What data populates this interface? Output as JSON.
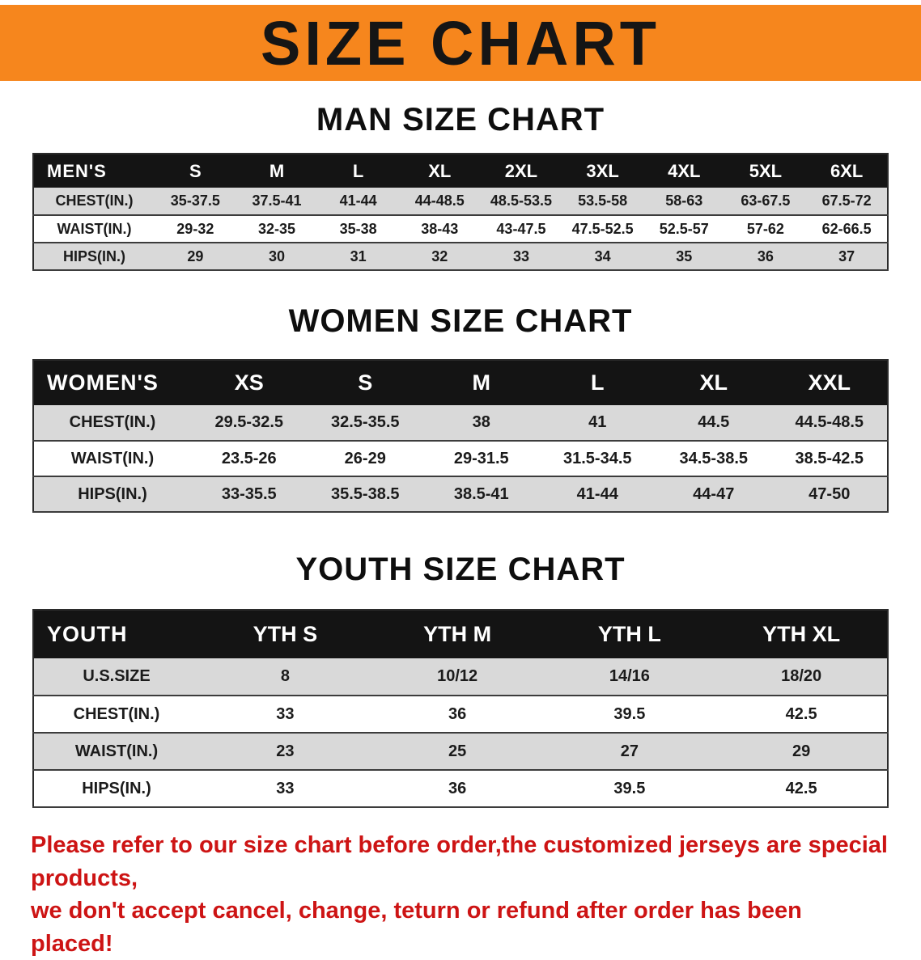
{
  "banner": {
    "title": "SIZE CHART",
    "bg_color": "#f6861d",
    "text_color": "#151515"
  },
  "men": {
    "heading": "MAN SIZE CHART",
    "table": {
      "header": [
        "MEN'S",
        "S",
        "M",
        "L",
        "XL",
        "2XL",
        "3XL",
        "4XL",
        "5XL",
        "6XL"
      ],
      "rows": [
        {
          "label": "CHEST(IN.)",
          "values": [
            "35-37.5",
            "37.5-41",
            "41-44",
            "44-48.5",
            "48.5-53.5",
            "53.5-58",
            "58-63",
            "63-67.5",
            "67.5-72"
          ]
        },
        {
          "label": "WAIST(IN.)",
          "values": [
            "29-32",
            "32-35",
            "35-38",
            "38-43",
            "43-47.5",
            "47.5-52.5",
            "52.5-57",
            "57-62",
            "62-66.5"
          ]
        },
        {
          "label": "HIPS(IN.)",
          "values": [
            "29",
            "30",
            "31",
            "32",
            "33",
            "34",
            "35",
            "36",
            "37"
          ]
        }
      ]
    }
  },
  "women": {
    "heading": "WOMEN SIZE CHART",
    "table": {
      "header": [
        "WOMEN'S",
        "XS",
        "S",
        "M",
        "L",
        "XL",
        "XXL"
      ],
      "rows": [
        {
          "label": "CHEST(IN.)",
          "values": [
            "29.5-32.5",
            "32.5-35.5",
            "38",
            "41",
            "44.5",
            "44.5-48.5"
          ]
        },
        {
          "label": "WAIST(IN.)",
          "values": [
            "23.5-26",
            "26-29",
            "29-31.5",
            "31.5-34.5",
            "34.5-38.5",
            "38.5-42.5"
          ]
        },
        {
          "label": "HIPS(IN.)",
          "values": [
            "33-35.5",
            "35.5-38.5",
            "38.5-41",
            "41-44",
            "44-47",
            "47-50"
          ]
        }
      ]
    }
  },
  "youth": {
    "heading": "YOUTH SIZE CHART",
    "table": {
      "header": [
        "YOUTH",
        "YTH S",
        "YTH M",
        "YTH L",
        "YTH XL"
      ],
      "rows": [
        {
          "label": "U.S.SIZE",
          "values": [
            "8",
            "10/12",
            "14/16",
            "18/20"
          ]
        },
        {
          "label": "CHEST(IN.)",
          "values": [
            "33",
            "36",
            "39.5",
            "42.5"
          ]
        },
        {
          "label": "WAIST(IN.)",
          "values": [
            "23",
            "25",
            "27",
            "29"
          ]
        },
        {
          "label": "HIPS(IN.)",
          "values": [
            "33",
            "36",
            "39.5",
            "42.5"
          ]
        }
      ]
    }
  },
  "footer": {
    "line1": "Please refer to our size chart before order,the customized jerseys are special products,",
    "line2": "we don't accept cancel, change, teturn or refund after order has been placed!",
    "color": "#cd1414"
  }
}
